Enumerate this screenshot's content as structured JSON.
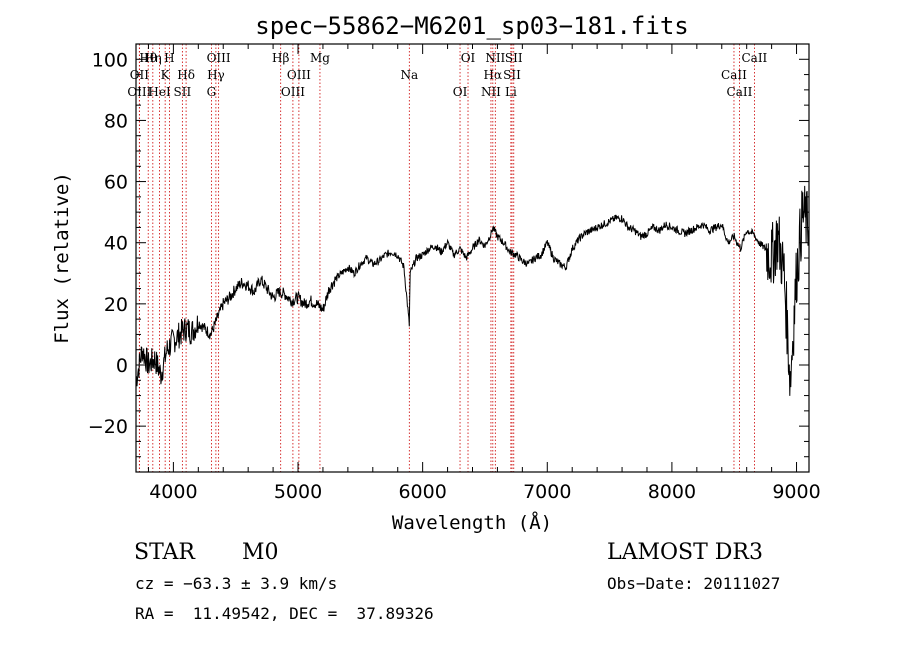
{
  "chart_data": {
    "type": "line",
    "title": "spec−55862−M6201_sp03−181.fits",
    "xlabel": "Wavelength (Å)",
    "ylabel": "Flux (relative)",
    "xlim": [
      3700,
      9100
    ],
    "ylim": [
      -35,
      105
    ],
    "xticks": [
      4000,
      5000,
      6000,
      7000,
      8000,
      9000
    ],
    "xtick_labels": [
      "4000",
      "5000",
      "6000",
      "7000",
      "8000",
      "9000"
    ],
    "yticks": [
      -20,
      0,
      20,
      40,
      60,
      80,
      100
    ],
    "ytick_labels": [
      "−20",
      "0",
      "20",
      "40",
      "60",
      "80",
      "100"
    ],
    "series": [
      {
        "name": "spectrum",
        "x": [
          3700,
          3750,
          3800,
          3850,
          3900,
          3950,
          4000,
          4050,
          4100,
          4150,
          4200,
          4250,
          4300,
          4350,
          4400,
          4450,
          4500,
          4550,
          4600,
          4650,
          4700,
          4750,
          4800,
          4850,
          4900,
          4950,
          5000,
          5050,
          5100,
          5150,
          5200,
          5250,
          5300,
          5350,
          5400,
          5450,
          5500,
          5550,
          5600,
          5650,
          5700,
          5750,
          5800,
          5850,
          5893,
          5900,
          5950,
          6000,
          6050,
          6100,
          6150,
          6200,
          6250,
          6300,
          6350,
          6400,
          6450,
          6500,
          6550,
          6563,
          6600,
          6650,
          6700,
          6750,
          6800,
          6850,
          6900,
          6950,
          7000,
          7050,
          7100,
          7150,
          7200,
          7250,
          7300,
          7350,
          7400,
          7450,
          7500,
          7550,
          7600,
          7650,
          7700,
          7750,
          7800,
          7850,
          7900,
          7950,
          8000,
          8050,
          8100,
          8150,
          8200,
          8250,
          8300,
          8350,
          8400,
          8450,
          8500,
          8550,
          8600,
          8650,
          8700,
          8750,
          8800,
          8850,
          8900,
          8950,
          9000,
          9050,
          9100
        ],
        "y": [
          -5,
          5,
          0,
          2,
          -3,
          5,
          8,
          10,
          12,
          11,
          14,
          12,
          10,
          15,
          20,
          22,
          25,
          27,
          26,
          24,
          28,
          25,
          22,
          24,
          23,
          21,
          22,
          20,
          21,
          20,
          18,
          25,
          28,
          30,
          32,
          30,
          33,
          35,
          33,
          34,
          36,
          37,
          36,
          32,
          13,
          30,
          35,
          36,
          38,
          39,
          37,
          40,
          36,
          38,
          35,
          38,
          41,
          39,
          43,
          45,
          42,
          40,
          37,
          36,
          34,
          33,
          35,
          36,
          40,
          35,
          33,
          32,
          38,
          41,
          43,
          44,
          45,
          46,
          47,
          48,
          48,
          45,
          44,
          42,
          43,
          45,
          44,
          46,
          45,
          44,
          43,
          44,
          45,
          46,
          44,
          45,
          46,
          40,
          42,
          38,
          44,
          43,
          40,
          38,
          35,
          42,
          30,
          -5,
          30,
          50,
          45
        ]
      }
    ],
    "line_markers": [
      {
        "label": "Hθ",
        "x": 3798
      },
      {
        "label": "OII",
        "x": 3727
      },
      {
        "label": "OIII",
        "x": 3727
      },
      {
        "label": "Hη",
        "x": 3835
      },
      {
        "label": "K",
        "x": 3934
      },
      {
        "label": "HeI",
        "x": 3889
      },
      {
        "label": "H",
        "x": 3968
      },
      {
        "label": "Hδ",
        "x": 4102
      },
      {
        "label": "SII",
        "x": 4072
      },
      {
        "label": "OIII",
        "x": 4363
      },
      {
        "label": "Hγ",
        "x": 4341
      },
      {
        "label": "G",
        "x": 4305
      },
      {
        "label": "Hβ",
        "x": 4861
      },
      {
        "label": "OIII",
        "x": 5007
      },
      {
        "label": "OIII",
        "x": 4959
      },
      {
        "label": "Mg",
        "x": 5176
      },
      {
        "label": "Na",
        "x": 5893
      },
      {
        "label": "OI",
        "x": 6300
      },
      {
        "label": "OI",
        "x": 6364
      },
      {
        "label": "Hα",
        "x": 6563
      },
      {
        "label": "NII",
        "x": 6548
      },
      {
        "label": "NII",
        "x": 6583
      },
      {
        "label": "SII",
        "x": 6717
      },
      {
        "label": "Li",
        "x": 6708
      },
      {
        "label": "SII",
        "x": 6731
      },
      {
        "label": "CaII",
        "x": 8498
      },
      {
        "label": "CaII",
        "x": 8542
      },
      {
        "label": "CaII",
        "x": 8662
      }
    ]
  },
  "info": {
    "object_class": "STAR",
    "subclass": "M0",
    "survey": "LAMOST DR3",
    "cz": "cz = −63.3 ± 3.9 km/s",
    "obs_date": "Obs−Date: 20111027",
    "coords": "RA =  11.49542, DEC =  37.89326"
  },
  "colors": {
    "spectrum": "#000000",
    "marker_lines": "#cc0000",
    "axes": "#000000",
    "background": "#ffffff"
  }
}
